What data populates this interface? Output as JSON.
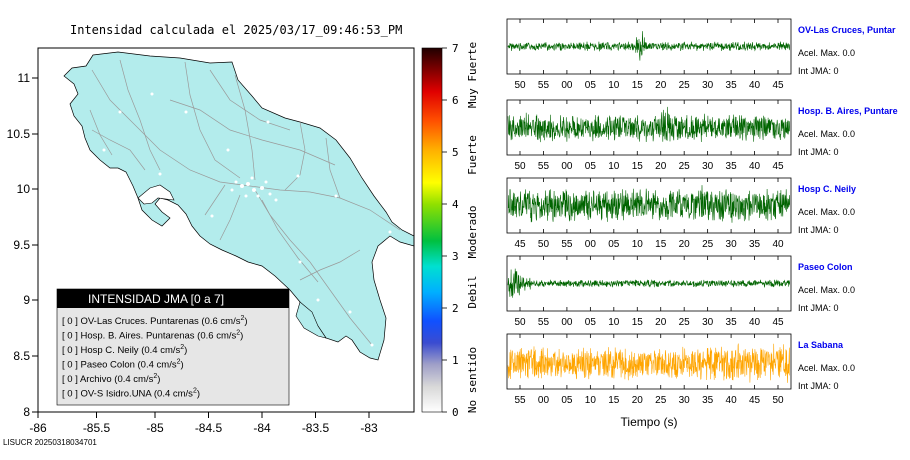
{
  "map": {
    "title": "Intensidad calculada el 2025/03/17_09:46:53_PM",
    "x_ticks": [
      "-86",
      "-85.5",
      "-85",
      "-84.5",
      "-84",
      "-83.5",
      "-83"
    ],
    "y_ticks": [
      "11",
      "10.5",
      "10",
      "9.5",
      "9",
      "8.5",
      "8"
    ],
    "footer": "LISUCR 20250318034701",
    "land_color": "#b3ecec"
  },
  "colorbar": {
    "ticks": [
      "7",
      "6",
      "5",
      "4",
      "3",
      "2",
      "1",
      "0"
    ],
    "levels": [
      "Muy Fuerte",
      "Fuerte",
      "Moderado",
      "Debil",
      "No sentido"
    ]
  },
  "legend": {
    "header": "INTENSIDAD JMA [0 a 7]",
    "rows": [
      {
        "badge": "[ 0 ]",
        "text": "OV-Las Cruces. Puntarenas (0.6 cm/s",
        "sup": "2",
        "tail": ")"
      },
      {
        "badge": "[ 0 ]",
        "text": "Hosp. B. Aires. Puntarenas (0.6 cm/s",
        "sup": "2",
        "tail": ")"
      },
      {
        "badge": "[ 0 ]",
        "text": "Hosp C. Neily (0.4 cm/s",
        "sup": "2",
        "tail": ")"
      },
      {
        "badge": "[ 0 ]",
        "text": "Paseo Colon (0.4 cm/s",
        "sup": "2",
        "tail": ")"
      },
      {
        "badge": "[ 0 ]",
        "text": "Archivo (0.4 cm/s",
        "sup": "2",
        "tail": ")"
      },
      {
        "badge": "[ 0 ]",
        "text": "OV-S Isidro.UNA (0.4 cm/s",
        "sup": "2",
        "tail": ")"
      }
    ]
  },
  "chart_data": {
    "type": "line",
    "xlabel": "Tiempo (s)",
    "series": [
      {
        "name": "OV-Las Cruces, Puntar",
        "accel": "Acel. Max. 0.0",
        "int": "Int JMA: 0",
        "color": "#006400",
        "ticks": [
          "50",
          "55",
          "00",
          "05",
          "10",
          "15",
          "20",
          "25",
          "30",
          "35",
          "40",
          "45"
        ],
        "burst": 0.47
      },
      {
        "name": "Hosp. B. Aires, Puntare",
        "accel": "Acel. Max. 0.0",
        "int": "Int JMA: 0",
        "color": "#006400",
        "ticks": [
          "50",
          "55",
          "00",
          "05",
          "10",
          "15",
          "20",
          "25",
          "30",
          "35",
          "40",
          "45"
        ],
        "burst": 0.56
      },
      {
        "name": "Hosp C. Neily",
        "accel": "Acel. Max. 0.0",
        "int": "Int JMA: 0",
        "color": "#006400",
        "ticks": [
          "45",
          "50",
          "55",
          "00",
          "05",
          "10",
          "15",
          "20",
          "25",
          "30",
          "35",
          "40"
        ],
        "burst": 0.7
      },
      {
        "name": "Paseo Colon",
        "accel": "Acel. Max. 0.0",
        "int": "Int JMA: 0",
        "color": "#006400",
        "ticks": [
          "50",
          "55",
          "00",
          "05",
          "10",
          "15",
          "20",
          "25",
          "30",
          "35",
          "40",
          "45"
        ],
        "burst": 0.03
      },
      {
        "name": "La Sabana",
        "accel": "Acel. Max. 0.0",
        "int": "Int JMA: 0",
        "color": "#ffa500",
        "ticks": [
          "55",
          "00",
          "05",
          "10",
          "15",
          "20",
          "25",
          "30",
          "35",
          "40",
          "45",
          "50"
        ],
        "burst": -1
      }
    ]
  }
}
